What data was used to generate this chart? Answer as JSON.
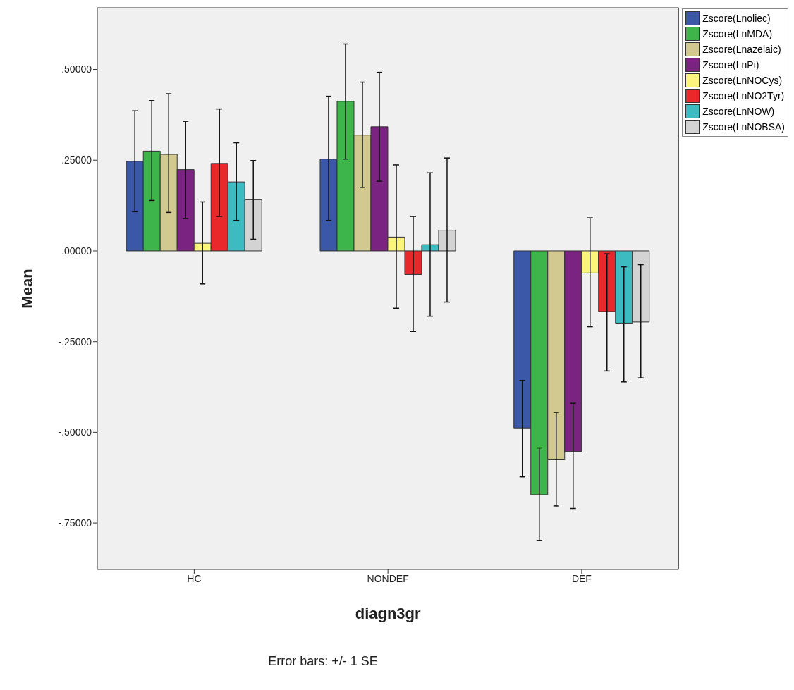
{
  "chart_data": {
    "type": "bar",
    "xlabel": "diagn3gr",
    "ylabel": "Mean",
    "categories": [
      "HC",
      "NONDEF",
      "DEF"
    ],
    "ylim": [
      -0.878,
      0.67
    ],
    "yticks": [
      {
        "value": 0.5,
        "label": ".50000"
      },
      {
        "value": 0.25,
        "label": ".25000"
      },
      {
        "value": 0,
        "label": ".00000"
      },
      {
        "value": -0.25,
        "label": "-.25000"
      },
      {
        "value": -0.5,
        "label": "-.50000"
      },
      {
        "value": -0.75,
        "label": "-.75000"
      }
    ],
    "grid": false,
    "legend": "top right",
    "annotations": [
      "Error bars: +/- 1 SE"
    ],
    "series": [
      {
        "name": "Zscore(Lnoliec)",
        "color": "#3b57a7",
        "values": [
          0.247,
          0.253,
          -0.488
        ],
        "errors": [
          [
            0.108,
            0.386
          ],
          [
            0.084,
            0.426
          ],
          [
            -0.623,
            -0.357
          ]
        ]
      },
      {
        "name": "Zscore(LnMDA)",
        "color": "#3db54a",
        "values": [
          0.275,
          0.412,
          -0.672
        ],
        "errors": [
          [
            0.139,
            0.414
          ],
          [
            0.253,
            0.57
          ],
          [
            -0.798,
            -0.543
          ]
        ]
      },
      {
        "name": "Zscore(Lnazelaic)",
        "color": "#d1c98f",
        "values": [
          0.266,
          0.319,
          -0.574
        ],
        "errors": [
          [
            0.106,
            0.433
          ],
          [
            0.175,
            0.465
          ],
          [
            -0.703,
            -0.445
          ]
        ]
      },
      {
        "name": "Zscore(LnPi)",
        "color": "#7a2380",
        "values": [
          0.224,
          0.342,
          -0.553
        ],
        "errors": [
          [
            0.089,
            0.357
          ],
          [
            0.192,
            0.492
          ],
          [
            -0.71,
            -0.42
          ]
        ]
      },
      {
        "name": "Zscore(LnNOCys)",
        "color": "#fbf57b",
        "values": [
          0.021,
          0.038,
          -0.061
        ],
        "errors": [
          [
            -0.091,
            0.135
          ],
          [
            -0.158,
            0.237
          ],
          [
            -0.209,
            0.091
          ]
        ]
      },
      {
        "name": "Zscore(LnNO2Tyr)",
        "color": "#e8282a",
        "values": [
          0.241,
          -0.065,
          -0.167
        ],
        "errors": [
          [
            0.095,
            0.391
          ],
          [
            -0.222,
            0.095
          ],
          [
            -0.331,
            -0.008
          ]
        ]
      },
      {
        "name": "Zscore(LnNOW)",
        "color": "#3cbcc0",
        "values": [
          0.19,
          0.017,
          -0.199
        ],
        "errors": [
          [
            0.084,
            0.298
          ],
          [
            -0.18,
            0.215
          ],
          [
            -0.361,
            -0.044
          ]
        ]
      },
      {
        "name": "Zscore(LnNOBSA)",
        "color": "#d3d3d3",
        "values": [
          0.141,
          0.057,
          -0.196
        ],
        "errors": [
          [
            0.032,
            0.249
          ],
          [
            -0.141,
            0.256
          ],
          [
            -0.35,
            -0.038
          ]
        ]
      }
    ]
  }
}
